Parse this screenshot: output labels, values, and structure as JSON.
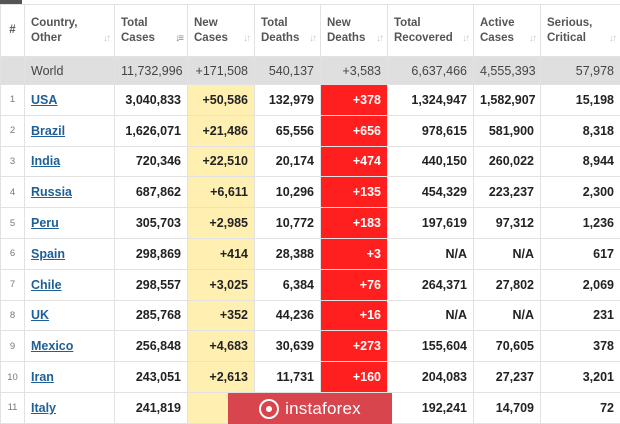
{
  "columns": [
    {
      "line1": "#",
      "line2": "",
      "active": false
    },
    {
      "line1": "Country,",
      "line2": "Other",
      "active": false
    },
    {
      "line1": "Total",
      "line2": "Cases",
      "active": true
    },
    {
      "line1": "New",
      "line2": "Cases",
      "active": false
    },
    {
      "line1": "Total",
      "line2": "Deaths",
      "active": false
    },
    {
      "line1": "New",
      "line2": "Deaths",
      "active": false
    },
    {
      "line1": "Total",
      "line2": "Recovered",
      "active": false
    },
    {
      "line1": "Active",
      "line2": "Cases",
      "active": false
    },
    {
      "line1": "Serious,",
      "line2": "Critical",
      "active": false
    }
  ],
  "world": {
    "name": "World",
    "total_cases": "11,732,996",
    "new_cases": "+171,508",
    "total_deaths": "540,137",
    "new_deaths": "+3,583",
    "total_recovered": "6,637,466",
    "active_cases": "4,555,393",
    "serious_critical": "57,978"
  },
  "rows": [
    {
      "idx": "1",
      "country": "USA",
      "total_cases": "3,040,833",
      "new_cases": "+50,586",
      "total_deaths": "132,979",
      "new_deaths": "+378",
      "total_recovered": "1,324,947",
      "active_cases": "1,582,907",
      "serious_critical": "15,198"
    },
    {
      "idx": "2",
      "country": "Brazil",
      "total_cases": "1,626,071",
      "new_cases": "+21,486",
      "total_deaths": "65,556",
      "new_deaths": "+656",
      "total_recovered": "978,615",
      "active_cases": "581,900",
      "serious_critical": "8,318"
    },
    {
      "idx": "3",
      "country": "India",
      "total_cases": "720,346",
      "new_cases": "+22,510",
      "total_deaths": "20,174",
      "new_deaths": "+474",
      "total_recovered": "440,150",
      "active_cases": "260,022",
      "serious_critical": "8,944"
    },
    {
      "idx": "4",
      "country": "Russia",
      "total_cases": "687,862",
      "new_cases": "+6,611",
      "total_deaths": "10,296",
      "new_deaths": "+135",
      "total_recovered": "454,329",
      "active_cases": "223,237",
      "serious_critical": "2,300"
    },
    {
      "idx": "5",
      "country": "Peru",
      "total_cases": "305,703",
      "new_cases": "+2,985",
      "total_deaths": "10,772",
      "new_deaths": "+183",
      "total_recovered": "197,619",
      "active_cases": "97,312",
      "serious_critical": "1,236"
    },
    {
      "idx": "6",
      "country": "Spain",
      "total_cases": "298,869",
      "new_cases": "+414",
      "total_deaths": "28,388",
      "new_deaths": "+3",
      "total_recovered": "N/A",
      "active_cases": "N/A",
      "serious_critical": "617"
    },
    {
      "idx": "7",
      "country": "Chile",
      "total_cases": "298,557",
      "new_cases": "+3,025",
      "total_deaths": "6,384",
      "new_deaths": "+76",
      "total_recovered": "264,371",
      "active_cases": "27,802",
      "serious_critical": "2,069"
    },
    {
      "idx": "8",
      "country": "UK",
      "total_cases": "285,768",
      "new_cases": "+352",
      "total_deaths": "44,236",
      "new_deaths": "+16",
      "total_recovered": "N/A",
      "active_cases": "N/A",
      "serious_critical": "231"
    },
    {
      "idx": "9",
      "country": "Mexico",
      "total_cases": "256,848",
      "new_cases": "+4,683",
      "total_deaths": "30,639",
      "new_deaths": "+273",
      "total_recovered": "155,604",
      "active_cases": "70,605",
      "serious_critical": "378"
    },
    {
      "idx": "10",
      "country": "Iran",
      "total_cases": "243,051",
      "new_cases": "+2,613",
      "total_deaths": "11,731",
      "new_deaths": "+160",
      "total_recovered": "204,083",
      "active_cases": "27,237",
      "serious_critical": "3,201"
    },
    {
      "idx": "11",
      "country": "Italy",
      "total_cases": "241,819",
      "new_cases": "+",
      "total_deaths": "",
      "new_deaths": "",
      "total_recovered": "192,241",
      "active_cases": "14,709",
      "serious_critical": "72"
    }
  ],
  "watermark": {
    "text": "instaforex",
    "icon": "instaforex-logo-icon"
  },
  "colors": {
    "new_cases_bg": "#fff0b2",
    "new_deaths_bg": "#ff1f1f",
    "world_bg": "#dfdfdf",
    "link": "#1e5f96"
  }
}
